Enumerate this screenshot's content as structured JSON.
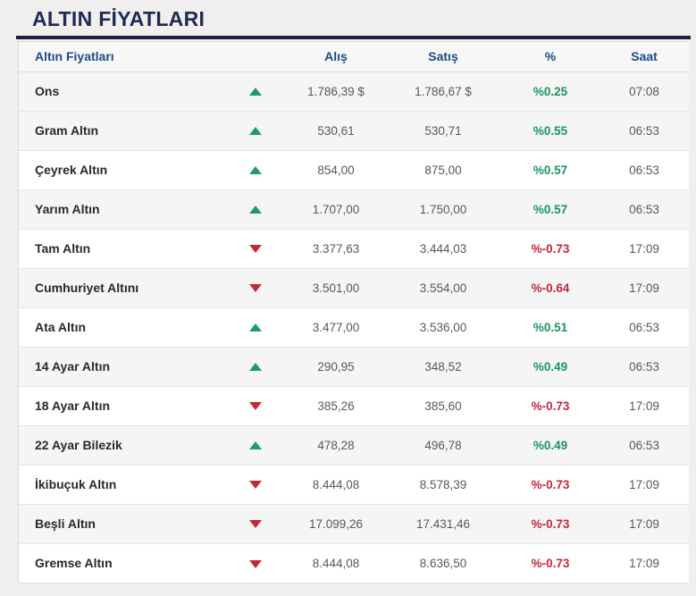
{
  "page": {
    "title": "ALTIN FİYATLARI"
  },
  "colors": {
    "positive": "#17965e",
    "negative": "#c0273d",
    "title": "#212a52",
    "header_text": "#1c4b85",
    "up_arrow": "#1f9d61",
    "down_arrow": "#c22b35"
  },
  "table": {
    "columns": {
      "name": "Altın Fiyatları",
      "buy": "Alış",
      "sell": "Satış",
      "percent": "%",
      "time": "Saat"
    },
    "rows": [
      {
        "name": "Ons",
        "direction": "up",
        "buy": "1.786,39 $",
        "sell": "1.786,67 $",
        "percent": "%0.25",
        "time": "07:08"
      },
      {
        "name": "Gram Altın",
        "direction": "up",
        "buy": "530,61",
        "sell": "530,71",
        "percent": "%0.55",
        "time": "06:53"
      },
      {
        "name": "Çeyrek Altın",
        "direction": "up",
        "buy": "854,00",
        "sell": "875,00",
        "percent": "%0.57",
        "time": "06:53"
      },
      {
        "name": "Yarım Altın",
        "direction": "up",
        "buy": "1.707,00",
        "sell": "1.750,00",
        "percent": "%0.57",
        "time": "06:53"
      },
      {
        "name": "Tam Altın",
        "direction": "down",
        "buy": "3.377,63",
        "sell": "3.444,03",
        "percent": "%-0.73",
        "time": "17:09"
      },
      {
        "name": "Cumhuriyet Altını",
        "direction": "down",
        "buy": "3.501,00",
        "sell": "3.554,00",
        "percent": "%-0.64",
        "time": "17:09"
      },
      {
        "name": "Ata Altın",
        "direction": "up",
        "buy": "3.477,00",
        "sell": "3.536,00",
        "percent": "%0.51",
        "time": "06:53"
      },
      {
        "name": "14 Ayar Altın",
        "direction": "up",
        "buy": "290,95",
        "sell": "348,52",
        "percent": "%0.49",
        "time": "06:53"
      },
      {
        "name": "18 Ayar Altın",
        "direction": "down",
        "buy": "385,26",
        "sell": "385,60",
        "percent": "%-0.73",
        "time": "17:09"
      },
      {
        "name": "22 Ayar Bilezik",
        "direction": "up",
        "buy": "478,28",
        "sell": "496,78",
        "percent": "%0.49",
        "time": "06:53"
      },
      {
        "name": "İkibuçuk Altın",
        "direction": "down",
        "buy": "8.444,08",
        "sell": "8.578,39",
        "percent": "%-0.73",
        "time": "17:09"
      },
      {
        "name": "Beşli Altın",
        "direction": "down",
        "buy": "17.099,26",
        "sell": "17.431,46",
        "percent": "%-0.73",
        "time": "17:09"
      },
      {
        "name": "Gremse Altın",
        "direction": "down",
        "buy": "8.444,08",
        "sell": "8.636,50",
        "percent": "%-0.73",
        "time": "17:09"
      }
    ]
  }
}
